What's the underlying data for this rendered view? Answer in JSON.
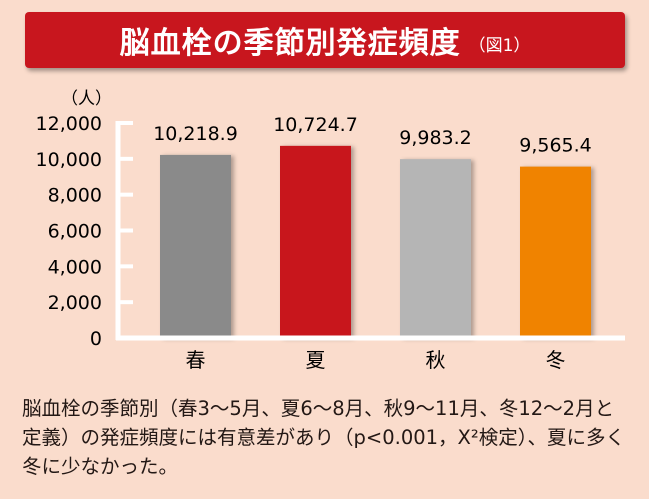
{
  "chart_data": {
    "type": "bar",
    "title": "脳血栓の季節別発症頻度",
    "figure_label": "（図1）",
    "ylabel": "（人）",
    "xlabel": "",
    "categories": [
      "春",
      "夏",
      "秋",
      "冬"
    ],
    "values": [
      10218.9,
      10724.7,
      9983.2,
      9565.4
    ],
    "value_labels": [
      "10,218.9",
      "10,724.7",
      "9,983.2",
      "9,565.4"
    ],
    "colors": [
      "#8a8a8a",
      "#c8161e",
      "#b5b5b5",
      "#f08300"
    ],
    "ylim": [
      0,
      12000
    ],
    "yticks": [
      0,
      2000,
      4000,
      6000,
      8000,
      10000,
      12000
    ],
    "ytick_labels": [
      "0",
      "2,000",
      "4,000",
      "6,000",
      "8,000",
      "10,000",
      "12,000"
    ],
    "grid": false
  },
  "caption": "脳血栓の季節別（春3〜5月、夏6〜8月、秋9〜11月、冬12〜2月と定義）の発症頻度には有意差があり（p<0.001，X²検定）、夏に多く冬に少なかった。"
}
